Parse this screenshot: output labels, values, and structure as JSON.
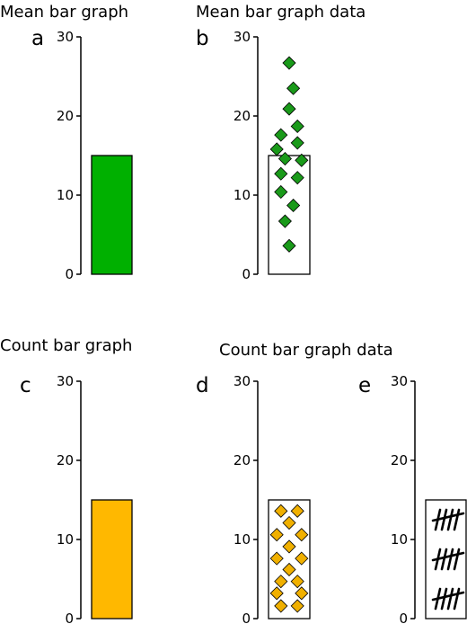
{
  "chart_data": [
    {
      "panel": "a",
      "type": "bar",
      "title": "Mean bar graph",
      "ylim": [
        0,
        30
      ],
      "yticks": [
        0,
        10,
        20,
        30
      ],
      "bar_value": 15,
      "bar_fill": "#00b000",
      "points": [],
      "tally_groups": 0
    },
    {
      "panel": "b",
      "type": "bar",
      "title": "Mean bar graph data",
      "ylim": [
        0,
        30
      ],
      "yticks": [
        0,
        10,
        20,
        30
      ],
      "bar_value": 15,
      "bar_fill": "#ffffff",
      "point_fill": "#1a9a1a",
      "points": [
        {
          "x": 0.5,
          "y": 26.7
        },
        {
          "x": 0.6,
          "y": 23.5
        },
        {
          "x": 0.5,
          "y": 20.9
        },
        {
          "x": 0.7,
          "y": 18.7
        },
        {
          "x": 0.3,
          "y": 17.6
        },
        {
          "x": 0.7,
          "y": 16.6
        },
        {
          "x": 0.2,
          "y": 15.8
        },
        {
          "x": 0.4,
          "y": 14.6
        },
        {
          "x": 0.8,
          "y": 14.4
        },
        {
          "x": 0.3,
          "y": 12.7
        },
        {
          "x": 0.7,
          "y": 12.2
        },
        {
          "x": 0.3,
          "y": 10.4
        },
        {
          "x": 0.6,
          "y": 8.7
        },
        {
          "x": 0.4,
          "y": 6.7
        },
        {
          "x": 0.5,
          "y": 3.6
        }
      ],
      "tally_groups": 0
    },
    {
      "panel": "c",
      "type": "bar",
      "title": "Count bar graph",
      "ylim": [
        0,
        30
      ],
      "yticks": [
        0,
        10,
        20,
        30
      ],
      "bar_value": 15,
      "bar_fill": "#ffb800",
      "points": [],
      "tally_groups": 0
    },
    {
      "panel": "d",
      "type": "bar",
      "title": "Count bar graph data",
      "ylim": [
        0,
        30
      ],
      "yticks": [
        0,
        10,
        20,
        30
      ],
      "bar_value": 15,
      "bar_fill": "#ffffff",
      "point_fill": "#f0b000",
      "points": [
        {
          "x": 0.3,
          "y": 13.6
        },
        {
          "x": 0.7,
          "y": 13.6
        },
        {
          "x": 0.5,
          "y": 12.1
        },
        {
          "x": 0.2,
          "y": 10.6
        },
        {
          "x": 0.8,
          "y": 10.6
        },
        {
          "x": 0.5,
          "y": 9.1
        },
        {
          "x": 0.2,
          "y": 7.6
        },
        {
          "x": 0.8,
          "y": 7.6
        },
        {
          "x": 0.5,
          "y": 6.2
        },
        {
          "x": 0.3,
          "y": 4.7
        },
        {
          "x": 0.7,
          "y": 4.7
        },
        {
          "x": 0.2,
          "y": 3.2
        },
        {
          "x": 0.8,
          "y": 3.2
        },
        {
          "x": 0.3,
          "y": 1.6
        },
        {
          "x": 0.7,
          "y": 1.6
        }
      ],
      "tally_groups": 0
    },
    {
      "panel": "e",
      "type": "bar",
      "title": "",
      "ylim": [
        0,
        30
      ],
      "yticks": [
        0,
        10,
        20,
        30
      ],
      "bar_value": 15,
      "bar_fill": "#ffffff",
      "points": [],
      "tally_groups": 3,
      "tally_per_group": 5
    }
  ]
}
